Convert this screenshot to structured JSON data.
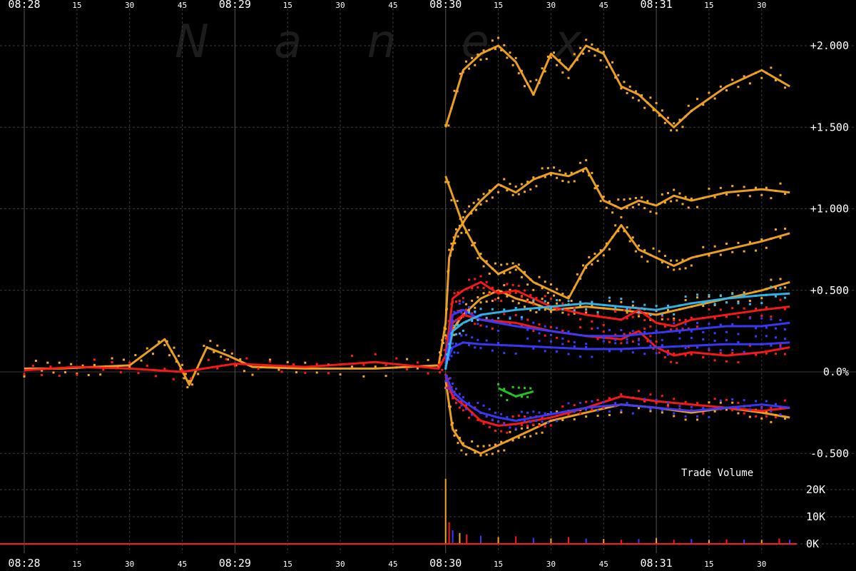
{
  "watermark": "N a n e x",
  "colors": {
    "background": "#000000",
    "grid": "#3a3a3a",
    "axis_text": "#ffffff",
    "orange": "#f5a623",
    "red": "#ff1a1a",
    "blue": "#3a3aff",
    "cyan": "#33bbee",
    "purple": "#b030e0",
    "green": "#22cc22",
    "white": "#ffffff"
  },
  "chart_data": [
    {
      "type": "line",
      "title": "",
      "xlabel": "",
      "ylabel": "",
      "x_unit": "seconds from 08:28:00",
      "xlim": [
        0,
        220
      ],
      "ylim": [
        -0.6,
        2.15
      ],
      "y_ticks": [
        {
          "value": 2.0,
          "label": "+2.000"
        },
        {
          "value": 1.5,
          "label": "+1.500"
        },
        {
          "value": 1.0,
          "label": "+1.000"
        },
        {
          "value": 0.5,
          "label": "+0.500"
        },
        {
          "value": 0.0,
          "label": "0.0%"
        },
        {
          "value": -0.5,
          "label": "-0.500"
        }
      ],
      "x_ticks_top": [
        {
          "t": 0,
          "label": "08:28",
          "major": true
        },
        {
          "t": 15,
          "label": "15",
          "major": false
        },
        {
          "t": 30,
          "label": "30",
          "major": false
        },
        {
          "t": 45,
          "label": "45",
          "major": false
        },
        {
          "t": 60,
          "label": "08:29",
          "major": true
        },
        {
          "t": 75,
          "label": "15",
          "major": false
        },
        {
          "t": 90,
          "label": "30",
          "major": false
        },
        {
          "t": 105,
          "label": "45",
          "major": false
        },
        {
          "t": 120,
          "label": "08:30",
          "major": true
        },
        {
          "t": 135,
          "label": "15",
          "major": false
        },
        {
          "t": 150,
          "label": "30",
          "major": false
        },
        {
          "t": 165,
          "label": "45",
          "major": false
        },
        {
          "t": 180,
          "label": "08:31",
          "major": true
        },
        {
          "t": 195,
          "label": "15",
          "major": false
        },
        {
          "t": 210,
          "label": "30",
          "major": false
        }
      ],
      "x_ticks_bottom": [
        {
          "t": 0,
          "label": "08:28",
          "major": true
        },
        {
          "t": 15,
          "label": "15",
          "major": false
        },
        {
          "t": 30,
          "label": "30",
          "major": false
        },
        {
          "t": 45,
          "label": "45",
          "major": false
        },
        {
          "t": 60,
          "label": "08:29",
          "major": true
        },
        {
          "t": 75,
          "label": "15",
          "major": false
        },
        {
          "t": 90,
          "label": "30",
          "major": false
        },
        {
          "t": 105,
          "label": "45",
          "major": false
        },
        {
          "t": 120,
          "label": "08:30",
          "major": true
        },
        {
          "t": 135,
          "label": "15",
          "major": false
        },
        {
          "t": 150,
          "label": "30",
          "major": false
        },
        {
          "t": 165,
          "label": "45",
          "major": false
        },
        {
          "t": 180,
          "label": "08:31",
          "major": true
        },
        {
          "t": 195,
          "label": "15",
          "major": false
        },
        {
          "t": 210,
          "label": "30",
          "major": false
        }
      ],
      "series": [
        {
          "color": "orange",
          "x": [
            0,
            10,
            20,
            30,
            40,
            44,
            47,
            52,
            58,
            65,
            80,
            100,
            118,
            120,
            121,
            123,
            126,
            130,
            135,
            140,
            145,
            150,
            155,
            160,
            165,
            170,
            175,
            180,
            185,
            190,
            200,
            210,
            218
          ],
          "y": [
            0.02,
            0.02,
            0.03,
            0.04,
            0.2,
            0.05,
            -0.08,
            0.15,
            0.1,
            0.03,
            0.02,
            0.02,
            0.04,
            0.3,
            0.7,
            0.85,
            0.95,
            1.05,
            1.15,
            1.1,
            1.18,
            1.22,
            1.2,
            1.25,
            1.05,
            1.0,
            1.05,
            1.02,
            1.08,
            1.05,
            1.1,
            1.12,
            1.1
          ]
        },
        {
          "color": "orange",
          "x": [
            120,
            125,
            130,
            135,
            140,
            145,
            150,
            155,
            160,
            165,
            170,
            175,
            180,
            185,
            190,
            200,
            210,
            218
          ],
          "y": [
            1.5,
            1.85,
            1.95,
            2.0,
            1.9,
            1.7,
            1.95,
            1.85,
            2.0,
            1.95,
            1.75,
            1.7,
            1.6,
            1.5,
            1.6,
            1.75,
            1.85,
            1.75
          ]
        },
        {
          "color": "orange",
          "x": [
            120,
            125,
            130,
            135,
            140,
            145,
            150,
            155,
            160,
            165,
            170,
            175,
            180,
            185,
            190,
            200,
            210,
            218
          ],
          "y": [
            1.2,
            0.9,
            0.7,
            0.6,
            0.65,
            0.55,
            0.5,
            0.45,
            0.65,
            0.75,
            0.9,
            0.75,
            0.7,
            0.65,
            0.7,
            0.75,
            0.8,
            0.85
          ]
        },
        {
          "color": "orange",
          "x": [
            120,
            125,
            130,
            135,
            140,
            145,
            150,
            160,
            170,
            180,
            190,
            200,
            210,
            218
          ],
          "y": [
            0.2,
            0.35,
            0.45,
            0.5,
            0.45,
            0.42,
            0.38,
            0.4,
            0.38,
            0.35,
            0.4,
            0.45,
            0.5,
            0.55
          ]
        },
        {
          "color": "red",
          "x": [
            0,
            15,
            30,
            45,
            60,
            80,
            100,
            118,
            120,
            122,
            125,
            130,
            135,
            140,
            145,
            150,
            160,
            170,
            175,
            180,
            185,
            190,
            200,
            210,
            218
          ],
          "y": [
            0.01,
            0.03,
            0.02,
            0.0,
            0.05,
            0.03,
            0.06,
            0.02,
            0.1,
            0.45,
            0.5,
            0.55,
            0.48,
            0.5,
            0.45,
            0.4,
            0.35,
            0.32,
            0.38,
            0.3,
            0.28,
            0.32,
            0.35,
            0.38,
            0.4
          ]
        },
        {
          "color": "red",
          "x": [
            120,
            122,
            125,
            130,
            140,
            150,
            160,
            170,
            175,
            180,
            185,
            190,
            200,
            210,
            218
          ],
          "y": [
            0.05,
            0.3,
            0.35,
            0.32,
            0.3,
            0.25,
            0.22,
            0.2,
            0.25,
            0.15,
            0.1,
            0.12,
            0.1,
            0.12,
            0.15
          ]
        },
        {
          "color": "blue",
          "x": [
            120,
            122,
            125,
            130,
            140,
            150,
            160,
            170,
            180,
            190,
            200,
            210,
            218
          ],
          "y": [
            0.05,
            0.35,
            0.38,
            0.32,
            0.28,
            0.25,
            0.22,
            0.22,
            0.24,
            0.26,
            0.28,
            0.28,
            0.3
          ]
        },
        {
          "color": "blue",
          "x": [
            120,
            122,
            125,
            130,
            140,
            150,
            160,
            170,
            180,
            190,
            200,
            210,
            218
          ],
          "y": [
            0.05,
            0.15,
            0.18,
            0.17,
            0.16,
            0.15,
            0.14,
            0.14,
            0.15,
            0.16,
            0.17,
            0.17,
            0.18
          ]
        },
        {
          "color": "cyan",
          "x": [
            120,
            122,
            125,
            130,
            140,
            150,
            160,
            170,
            180,
            190,
            200,
            210,
            218
          ],
          "y": [
            0.02,
            0.25,
            0.3,
            0.35,
            0.38,
            0.4,
            0.42,
            0.4,
            0.38,
            0.42,
            0.45,
            0.47,
            0.48
          ]
        },
        {
          "color": "orange",
          "x": [
            120,
            122,
            125,
            130,
            135,
            140,
            145,
            150,
            160,
            170,
            180,
            190,
            200,
            210,
            218
          ],
          "y": [
            -0.05,
            -0.35,
            -0.45,
            -0.5,
            -0.45,
            -0.4,
            -0.35,
            -0.3,
            -0.25,
            -0.2,
            -0.22,
            -0.25,
            -0.22,
            -0.25,
            -0.28
          ]
        },
        {
          "color": "red",
          "x": [
            120,
            122,
            125,
            130,
            135,
            140,
            145,
            150,
            160,
            170,
            180,
            190,
            200,
            210,
            218
          ],
          "y": [
            -0.03,
            -0.15,
            -0.2,
            -0.3,
            -0.33,
            -0.32,
            -0.3,
            -0.28,
            -0.22,
            -0.15,
            -0.18,
            -0.2,
            -0.22,
            -0.24,
            -0.22
          ]
        },
        {
          "color": "blue",
          "x": [
            120,
            122,
            125,
            130,
            135,
            140,
            145,
            150,
            160,
            170,
            180,
            190,
            200,
            210,
            218
          ],
          "y": [
            -0.02,
            -0.12,
            -0.18,
            -0.25,
            -0.28,
            -0.3,
            -0.28,
            -0.26,
            -0.22,
            -0.2,
            -0.22,
            -0.24,
            -0.22,
            -0.2,
            -0.22
          ]
        },
        {
          "color": "green",
          "x": [
            135,
            140,
            145
          ],
          "y": [
            -0.1,
            -0.15,
            -0.12
          ]
        }
      ]
    },
    {
      "type": "bar",
      "title": "Trade Volume",
      "x_unit": "seconds from 08:28:00",
      "ylim": [
        0,
        27000
      ],
      "y_ticks": [
        {
          "value": 20000,
          "label": "20K"
        },
        {
          "value": 10000,
          "label": "10K"
        },
        {
          "value": 0,
          "label": "0K"
        }
      ],
      "x": [
        0,
        20,
        40,
        60,
        80,
        100,
        118,
        120,
        121,
        122,
        124,
        126,
        130,
        135,
        140,
        145,
        150,
        155,
        160,
        165,
        170,
        175,
        180,
        185,
        190,
        195,
        200,
        205,
        210,
        215,
        218
      ],
      "values": [
        100,
        100,
        150,
        100,
        100,
        150,
        200,
        24000,
        8000,
        5000,
        4000,
        3500,
        3000,
        2500,
        2800,
        2200,
        2000,
        2500,
        2000,
        1800,
        1500,
        1800,
        2200,
        1500,
        1800,
        1500,
        1700,
        1600,
        1500,
        2000,
        1500
      ]
    }
  ]
}
